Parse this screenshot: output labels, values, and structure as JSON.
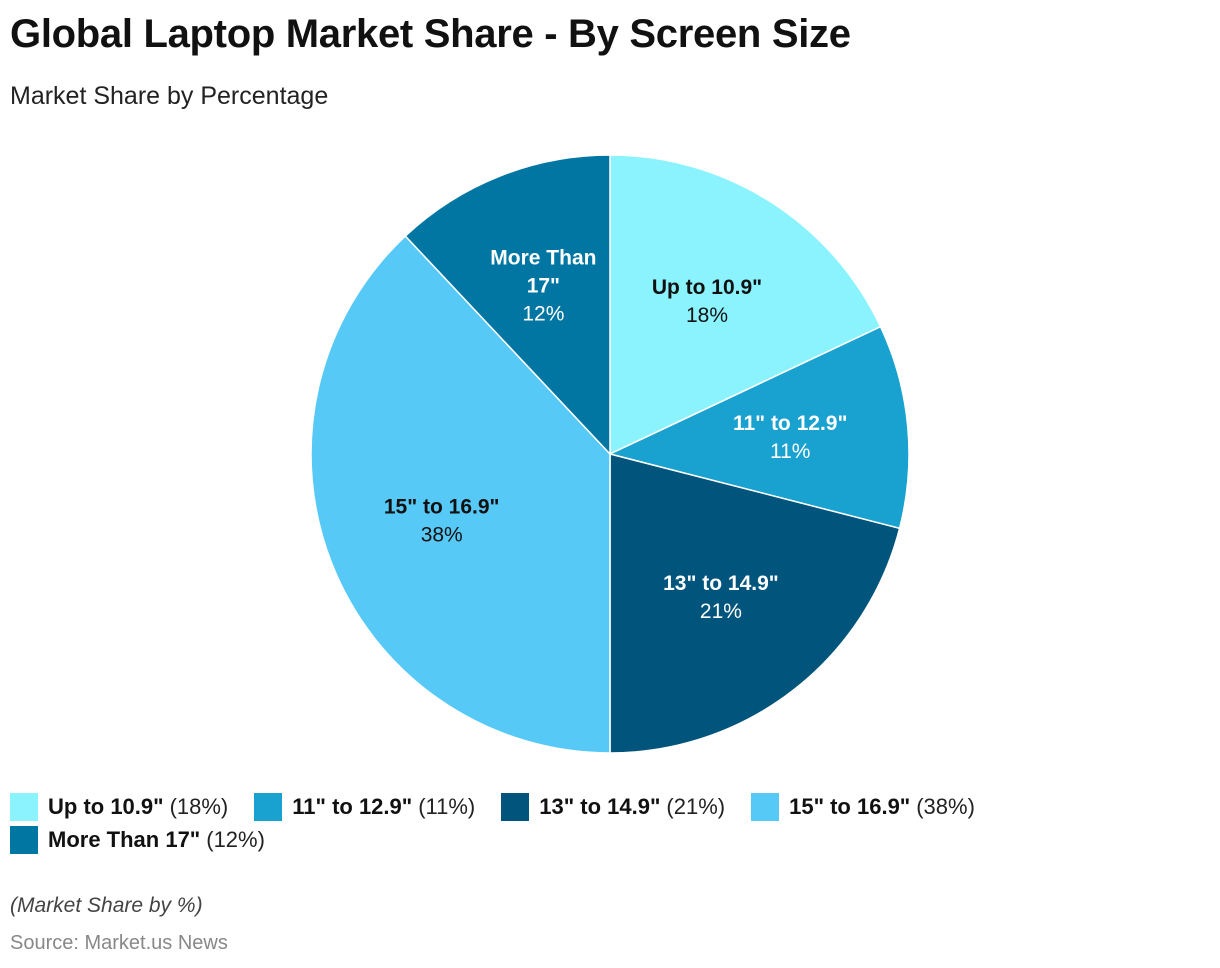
{
  "title": "Global Laptop Market Share - By Screen Size",
  "subtitle": "Market Share by Percentage",
  "note": "(Market Share by %)",
  "source": "Source: Market.us News",
  "chart_data": {
    "type": "pie",
    "title": "Global Laptop Market Share - By Screen Size",
    "subtitle": "Market Share by Percentage",
    "unit": "%",
    "legend_position": "bottom-left",
    "slices": [
      {
        "label_lines": [
          "Up to 10.9\""
        ],
        "name": "Up to 10.9\"",
        "value": 18,
        "value_label": "18%",
        "legend_value": "(18%)",
        "color": "#8af3fe",
        "text_color": "#111111"
      },
      {
        "label_lines": [
          "11\" to 12.9\""
        ],
        "name": "11\" to 12.9\"",
        "value": 11,
        "value_label": "11%",
        "legend_value": "(11%)",
        "color": "#19a1cf",
        "text_color": "#ffffff"
      },
      {
        "label_lines": [
          "13\" to 14.9\""
        ],
        "name": "13\" to 14.9\"",
        "value": 21,
        "value_label": "21%",
        "legend_value": "(21%)",
        "color": "#01557c",
        "text_color": "#ffffff"
      },
      {
        "label_lines": [
          "15\" to 16.9\""
        ],
        "name": "15\" to 16.9\"",
        "value": 38,
        "value_label": "38%",
        "legend_value": "(38%)",
        "color": "#57c9f7",
        "text_color": "#111111"
      },
      {
        "label_lines": [
          "More Than",
          "17\""
        ],
        "name": "More Than 17\"",
        "value": 12,
        "value_label": "12%",
        "legend_value": "(12%)",
        "color": "#0176a2",
        "text_color": "#ffffff"
      }
    ]
  }
}
